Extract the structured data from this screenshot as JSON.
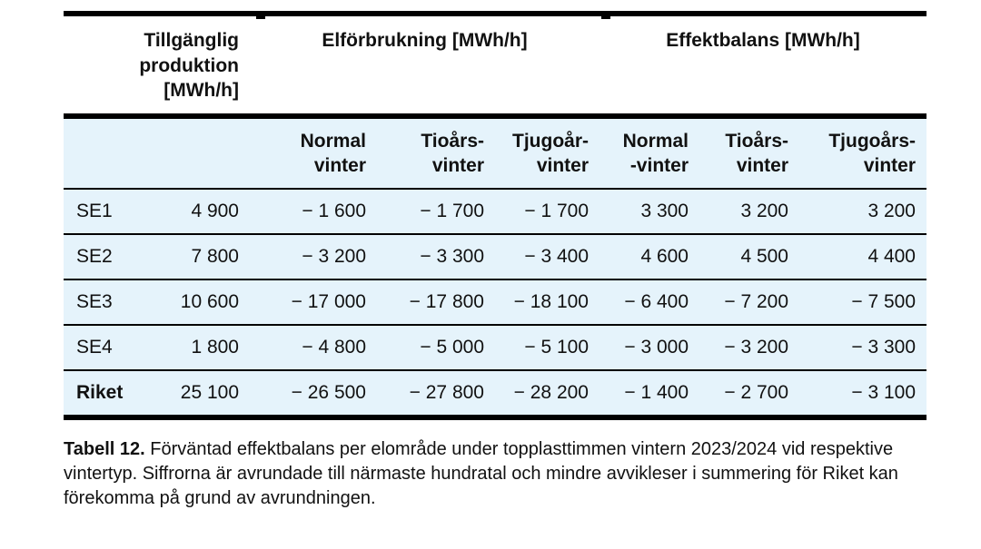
{
  "colors": {
    "table_body_background": "#e5f3fb",
    "rule": "#000000",
    "text": "#111111"
  },
  "table": {
    "group_headers": {
      "production": "Tillgänglig\nproduktion\n[MWh/h]",
      "consumption": "Elförbrukning [MWh/h]",
      "balance": "Effektbalans [MWh/h]"
    },
    "sub_headers": [
      "Normal\nvinter",
      "Tioårs-\nvinter",
      "Tjugoår-\nvinter",
      "Normal\n-vinter",
      "Tioårs-\nvinter",
      "Tjugoårs-\nvinter"
    ],
    "rows": [
      {
        "label": "SE1",
        "values": [
          "4 900",
          "− 1 600",
          "− 1 700",
          "− 1 700",
          "3 300",
          "3 200",
          "3 200"
        ]
      },
      {
        "label": "SE2",
        "values": [
          "7 800",
          "− 3 200",
          "− 3 300",
          "− 3 400",
          "4 600",
          "4 500",
          "4 400"
        ]
      },
      {
        "label": "SE3",
        "values": [
          "10 600",
          "− 17 000",
          "− 17 800",
          "− 18 100",
          "− 6 400",
          "− 7 200",
          "− 7 500"
        ]
      },
      {
        "label": "SE4",
        "values": [
          "1 800",
          "− 4 800",
          "− 5 000",
          "− 5 100",
          "− 3 000",
          "− 3 200",
          "− 3 300"
        ]
      },
      {
        "label": "Riket",
        "values": [
          "25 100",
          "− 26 500",
          "− 27 800",
          "− 28 200",
          "− 1 400",
          "− 2 700",
          "− 3 100"
        ]
      }
    ]
  },
  "caption": {
    "label": "Tabell 12.",
    "text": " Förväntad effektbalans per elområde under topplasttimmen vintern 2023/2024 vid respektive vintertyp. Siffrorna är avrundade till närmaste hundratal och mindre avvikleser i summering för Riket kan förekomma på grund av avrundningen."
  }
}
